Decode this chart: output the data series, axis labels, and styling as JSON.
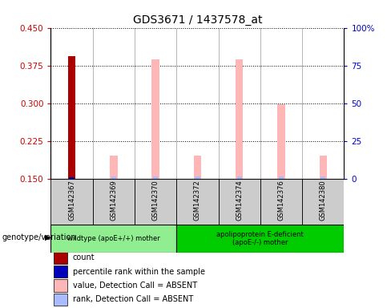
{
  "title": "GDS3671 / 1437578_at",
  "samples": [
    "GSM142367",
    "GSM142369",
    "GSM142370",
    "GSM142372",
    "GSM142374",
    "GSM142376",
    "GSM142380"
  ],
  "groups": [
    {
      "label": "wildtype (apoE+/+) mother",
      "samples": [
        "GSM142367",
        "GSM142369",
        "GSM142370"
      ],
      "color": "#90EE90"
    },
    {
      "label": "apolipoprotein E-deficient\n(apoE-/-) mother",
      "samples": [
        "GSM142372",
        "GSM142374",
        "GSM142376",
        "GSM142380"
      ],
      "color": "#00CC00"
    }
  ],
  "value_data": {
    "GSM142367": {
      "count": 0.393,
      "rank_pct": 1.0,
      "value_absent": null,
      "rank_absent_pct": null
    },
    "GSM142369": {
      "count": null,
      "rank_pct": null,
      "value_absent": 0.195,
      "rank_absent_pct": 1.5
    },
    "GSM142370": {
      "count": null,
      "rank_pct": null,
      "value_absent": 0.387,
      "rank_absent_pct": 1.5
    },
    "GSM142372": {
      "count": null,
      "rank_pct": null,
      "value_absent": 0.195,
      "rank_absent_pct": 1.5
    },
    "GSM142374": {
      "count": null,
      "rank_pct": null,
      "value_absent": 0.387,
      "rank_absent_pct": 1.5
    },
    "GSM142376": {
      "count": null,
      "rank_pct": null,
      "value_absent": 0.298,
      "rank_absent_pct": 1.5
    },
    "GSM142380": {
      "count": null,
      "rank_pct": null,
      "value_absent": 0.195,
      "rank_absent_pct": 1.5
    }
  },
  "ylim_left": [
    0.15,
    0.45
  ],
  "ylim_right": [
    0,
    100
  ],
  "yticks_left": [
    0.15,
    0.225,
    0.3,
    0.375,
    0.45
  ],
  "yticks_right": [
    0,
    25,
    50,
    75,
    100
  ],
  "left_color": "#CC0000",
  "right_color": "#0000CC",
  "bar_width": 0.18,
  "rank_bar_width": 0.12,
  "count_color": "#AA0000",
  "rank_color": "#0000BB",
  "value_absent_color": "#FFB6B6",
  "rank_absent_color": "#AABBFF",
  "bg_color": "#FFFFFF",
  "label_box_color": "#CCCCCC",
  "legend_items": [
    {
      "color": "#AA0000",
      "label": "count"
    },
    {
      "color": "#0000BB",
      "label": "percentile rank within the sample"
    },
    {
      "color": "#FFB6B6",
      "label": "value, Detection Call = ABSENT"
    },
    {
      "color": "#AABBFF",
      "label": "rank, Detection Call = ABSENT"
    }
  ]
}
